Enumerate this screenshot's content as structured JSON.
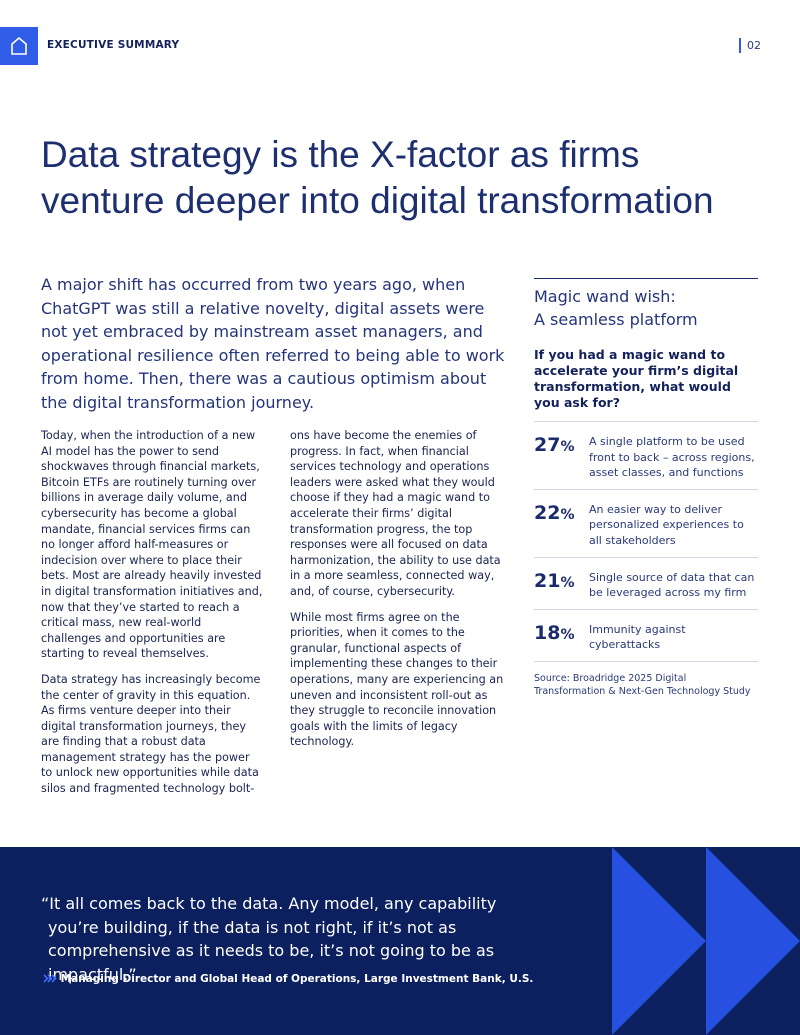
{
  "header": {
    "section": "EXECUTIVE SUMMARY",
    "page": "02"
  },
  "title": "Data strategy is the X-factor as firms venture deeper into digital transformation",
  "lead": "A major shift has occurred from two years ago, when ChatGPT was still a relative novelty, digital assets were not yet embraced by mainstream asset managers, and operational resilience often referred to being able to work from home. Then, there was a cautious optimism about the digital transformation journey.",
  "body": [
    "Today, when the introduction of a new AI model has the power to send shockwaves through financial markets, Bitcoin ETFs are routinely turning over billions in average daily volume, and cybersecurity has become a global mandate, financial services firms can no longer afford half-measures or indecision over where to place their bets. Most are already heavily invested in digital transformation initiatives and, now that they’ve started to reach a critical mass, new real-world challenges and opportunities are starting to reveal themselves.",
    "Data strategy has increasingly become the center of gravity in this equation. As firms venture deeper into their digital transformation journeys, they are finding that a robust data management strategy has the power to unlock new opportunities while data silos and fragmented technology bolt-ons have become the enemies of progress. In fact, when financial services technology and operations leaders were asked what they would choose if they had a magic wand to accelerate their firms’ digital transformation progress, the top responses were all focused on data harmonization, the ability to use data in a more seamless, connected way, and, of course, cybersecurity.",
    "While most firms agree on the priorities, when it comes to the granular, functional aspects of implementing these changes to their operations, many are experiencing an uneven and inconsistent roll-out as they struggle to reconcile innovation goals with the limits of legacy technology."
  ],
  "sidebar": {
    "title": [
      "Magic wand wish:",
      "A seamless platform"
    ],
    "question": "If you had a magic wand to accelerate your firm’s digital transformation, what would you ask for?",
    "stats": [
      {
        "value": 27,
        "unit": "%",
        "label": "A single platform to be used front to back – across regions, asset classes, and functions"
      },
      {
        "value": 22,
        "unit": "%",
        "label": "An easier way to deliver personalized experiences to all stakeholders"
      },
      {
        "value": 21,
        "unit": "%",
        "label": "Single source of data that can be leveraged across my firm"
      },
      {
        "value": 18,
        "unit": "%",
        "label": "Immunity against cyberattacks"
      }
    ],
    "source": "Source: Broadridge 2025 Digital Transformation & Next-Gen Technology Study"
  },
  "quote": {
    "text": "“It all comes back to the data. Any model, any capability you’re building, if the data is not right, if it’s not as comprehensive as it needs to be, it’s not going to be as impactful.”",
    "attribution": "Managing Director and Global Head of Operations, Large Investment Bank, U.S."
  }
}
